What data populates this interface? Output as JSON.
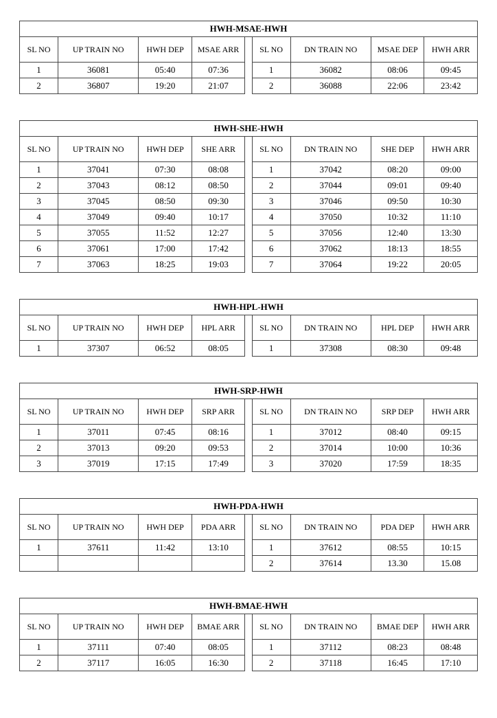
{
  "tables": [
    {
      "title": "HWH-MSAE-HWH",
      "headers_up": [
        "SL NO",
        "UP TRAIN NO",
        "HWH DEP",
        "MSAE ARR"
      ],
      "headers_dn": [
        "SL NO",
        "DN TRAIN NO",
        "MSAE DEP",
        "HWH ARR"
      ],
      "rows": [
        {
          "up": [
            "1",
            "36081",
            "05:40",
            "07:36"
          ],
          "dn": [
            "1",
            "36082",
            "08:06",
            "09:45"
          ]
        },
        {
          "up": [
            "2",
            "36807",
            "19:20",
            "21:07"
          ],
          "dn": [
            "2",
            "36088",
            "22:06",
            "23:42"
          ]
        }
      ]
    },
    {
      "title": "HWH-SHE-HWH",
      "headers_up": [
        "SL NO",
        "UP TRAIN NO",
        "HWH DEP",
        "SHE ARR"
      ],
      "headers_dn": [
        "SL NO",
        "DN TRAIN NO",
        "SHE DEP",
        "HWH ARR"
      ],
      "rows": [
        {
          "up": [
            "1",
            "37041",
            "07:30",
            "08:08"
          ],
          "dn": [
            "1",
            "37042",
            "08:20",
            "09:00"
          ]
        },
        {
          "up": [
            "2",
            "37043",
            "08:12",
            "08:50"
          ],
          "dn": [
            "2",
            "37044",
            "09:01",
            "09:40"
          ]
        },
        {
          "up": [
            "3",
            "37045",
            "08:50",
            "09:30"
          ],
          "dn": [
            "3",
            "37046",
            "09:50",
            "10:30"
          ]
        },
        {
          "up": [
            "4",
            "37049",
            "09:40",
            "10:17"
          ],
          "dn": [
            "4",
            "37050",
            "10:32",
            "11:10"
          ]
        },
        {
          "up": [
            "5",
            "37055",
            "11:52",
            "12:27"
          ],
          "dn": [
            "5",
            "37056",
            "12:40",
            "13:30"
          ]
        },
        {
          "up": [
            "6",
            "37061",
            "17:00",
            "17:42"
          ],
          "dn": [
            "6",
            "37062",
            "18:13",
            "18:55"
          ]
        },
        {
          "up": [
            "7",
            "37063",
            "18:25",
            "19:03"
          ],
          "dn": [
            "7",
            "37064",
            "19:22",
            "20:05"
          ]
        }
      ]
    },
    {
      "title": "HWH-HPL-HWH",
      "headers_up": [
        "SL NO",
        "UP TRAIN NO",
        "HWH DEP",
        "HPL ARR"
      ],
      "headers_dn": [
        "SL NO",
        "DN TRAIN NO",
        "HPL DEP",
        "HWH ARR"
      ],
      "rows": [
        {
          "up": [
            "1",
            "37307",
            "06:52",
            "08:05"
          ],
          "dn": [
            "1",
            "37308",
            "08:30",
            "09:48"
          ]
        }
      ]
    },
    {
      "title": "HWH-SRP-HWH",
      "headers_up": [
        "SL NO",
        "UP TRAIN NO",
        "HWH DEP",
        "SRP ARR"
      ],
      "headers_dn": [
        "SL NO",
        "DN TRAIN NO",
        "SRP DEP",
        "HWH ARR"
      ],
      "rows": [
        {
          "up": [
            "1",
            "37011",
            "07:45",
            "08:16"
          ],
          "dn": [
            "1",
            "37012",
            "08:40",
            "09:15"
          ]
        },
        {
          "up": [
            "2",
            "37013",
            "09:20",
            "09:53"
          ],
          "dn": [
            "2",
            "37014",
            "10:00",
            "10:36"
          ]
        },
        {
          "up": [
            "3",
            "37019",
            "17:15",
            "17:49"
          ],
          "dn": [
            "3",
            "37020",
            "17:59",
            "18:35"
          ]
        }
      ]
    },
    {
      "title": "HWH-PDA-HWH",
      "headers_up": [
        "SL NO",
        "UP TRAIN NO",
        "HWH DEP",
        "PDA ARR"
      ],
      "headers_dn": [
        "SL NO",
        "DN TRAIN NO",
        "PDA DEP",
        "HWH ARR"
      ],
      "rows": [
        {
          "up": [
            "1",
            "37611",
            "11:42",
            "13:10"
          ],
          "dn": [
            "1",
            "37612",
            "08:55",
            "10:15"
          ]
        },
        {
          "up": [
            "",
            "",
            "",
            ""
          ],
          "dn": [
            "2",
            "37614",
            "13.30",
            "15.08"
          ]
        }
      ]
    },
    {
      "title": "HWH-BMAE-HWH",
      "headers_up": [
        "SL NO",
        "UP TRAIN NO",
        "HWH DEP",
        "BMAE ARR"
      ],
      "headers_dn": [
        "SL NO",
        "DN TRAIN NO",
        "BMAE DEP",
        "HWH ARR"
      ],
      "rows": [
        {
          "up": [
            "1",
            "37111",
            "07:40",
            "08:05"
          ],
          "dn": [
            "1",
            "37112",
            "08:23",
            "08:48"
          ]
        },
        {
          "up": [
            "2",
            "37117",
            "16:05",
            "16:30"
          ],
          "dn": [
            "2",
            "37118",
            "16:45",
            "17:10"
          ]
        }
      ]
    }
  ]
}
